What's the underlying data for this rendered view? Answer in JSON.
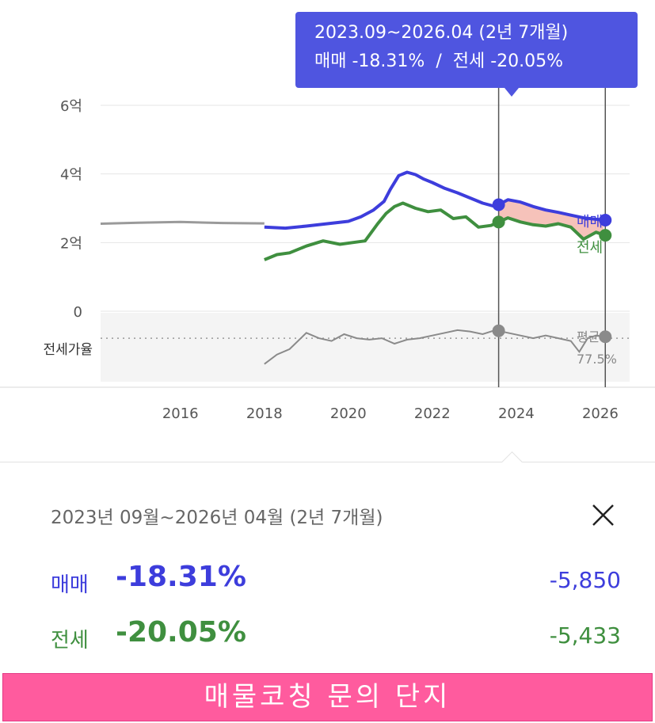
{
  "tooltip": {
    "period": "2023.09~2026.04 (2년 7개월)",
    "sale_text": "매매 -18.31%",
    "separator": "/",
    "jeonse_text": "전세 -20.05%"
  },
  "chart_data": {
    "type": "line",
    "xlim": [
      2014.1,
      2026.7
    ],
    "ylim": [
      0,
      6
    ],
    "y_ticks": [
      {
        "value": 6,
        "label": "6억"
      },
      {
        "value": 4,
        "label": "4억"
      },
      {
        "value": 2,
        "label": "2억"
      },
      {
        "value": 0,
        "label": "0"
      }
    ],
    "x_ticks": [
      "2016",
      "2018",
      "2020",
      "2022",
      "2024",
      "2026"
    ],
    "x_tick_values": [
      2016,
      2018,
      2020,
      2022,
      2024,
      2026
    ],
    "grid": true,
    "series": [
      {
        "name": "매매",
        "color": "#3d3ddc",
        "x": [
          2018,
          2018.5,
          2019,
          2019.5,
          2020,
          2020.3,
          2020.6,
          2020.85,
          2021,
          2021.2,
          2021.4,
          2021.6,
          2021.8,
          2022,
          2022.3,
          2022.6,
          2022.9,
          2023.2,
          2023.5,
          2023.8,
          2024.1,
          2024.4,
          2024.7,
          2025,
          2025.3,
          2025.6,
          2025.9,
          2026.15
        ],
        "values": [
          2.45,
          2.42,
          2.48,
          2.55,
          2.62,
          2.75,
          2.95,
          3.2,
          3.55,
          3.95,
          4.05,
          3.98,
          3.85,
          3.75,
          3.58,
          3.45,
          3.3,
          3.15,
          3.05,
          3.25,
          3.18,
          3.05,
          2.95,
          2.88,
          2.8,
          2.72,
          2.68,
          2.65
        ]
      },
      {
        "name": "전세",
        "color": "#3f8f3f",
        "x": [
          2018,
          2018.3,
          2018.6,
          2019,
          2019.4,
          2019.8,
          2020.1,
          2020.4,
          2020.7,
          2020.9,
          2021.1,
          2021.3,
          2021.6,
          2021.9,
          2022.2,
          2022.5,
          2022.8,
          2023.1,
          2023.4,
          2023.8,
          2024.1,
          2024.4,
          2024.7,
          2025,
          2025.3,
          2025.6,
          2025.9,
          2026.15
        ],
        "values": [
          1.5,
          1.65,
          1.7,
          1.9,
          2.05,
          1.95,
          2.0,
          2.05,
          2.55,
          2.85,
          3.05,
          3.15,
          3.0,
          2.9,
          2.95,
          2.7,
          2.75,
          2.45,
          2.5,
          2.72,
          2.6,
          2.52,
          2.48,
          2.55,
          2.45,
          2.1,
          2.3,
          2.2
        ]
      },
      {
        "name": "",
        "color": "#9a9a9a",
        "x": [
          2014.1,
          2015,
          2016,
          2017,
          2018
        ],
        "values": [
          2.55,
          2.58,
          2.6,
          2.57,
          2.56
        ]
      }
    ],
    "jeonse_ratio": {
      "label": "전세가율",
      "average_label": "평균",
      "average_value": "77.5%",
      "x": [
        2018,
        2018.3,
        2018.6,
        2019,
        2019.3,
        2019.6,
        2019.9,
        2020.2,
        2020.5,
        2020.8,
        2021.1,
        2021.4,
        2021.7,
        2022,
        2022.3,
        2022.6,
        2022.9,
        2023.2,
        2023.5,
        2023.8,
        2024.1,
        2024.4,
        2024.7,
        2025,
        2025.3,
        2025.5,
        2025.7,
        2025.9,
        2026.15
      ],
      "values": [
        61,
        68,
        72,
        84,
        80,
        78,
        83,
        80,
        79,
        80,
        76,
        79,
        80,
        82,
        84,
        86,
        85,
        83,
        86,
        84,
        82,
        80,
        82,
        80,
        78,
        70,
        80,
        82,
        81
      ]
    },
    "selection": {
      "start": 2023.58,
      "end": 2026.12
    }
  },
  "detail": {
    "period": "2023년 09월~2026년 04월 (2년 7개월)",
    "sale": {
      "label": "매매",
      "pct": "-18.31%",
      "amount": "-5,850"
    },
    "jeonse": {
      "label": "전세",
      "pct": "-20.05%",
      "amount": "-5,433"
    }
  },
  "colors": {
    "sale": "#3d3ddc",
    "jeonse": "#3f8f3f",
    "tooltip": "#4f55e0",
    "cta": "#ff5b9e",
    "decline_fill": "#f5b7ae"
  },
  "icons": {
    "close": "close-icon"
  },
  "cta": {
    "label": "매물코칭 문의 단지"
  }
}
